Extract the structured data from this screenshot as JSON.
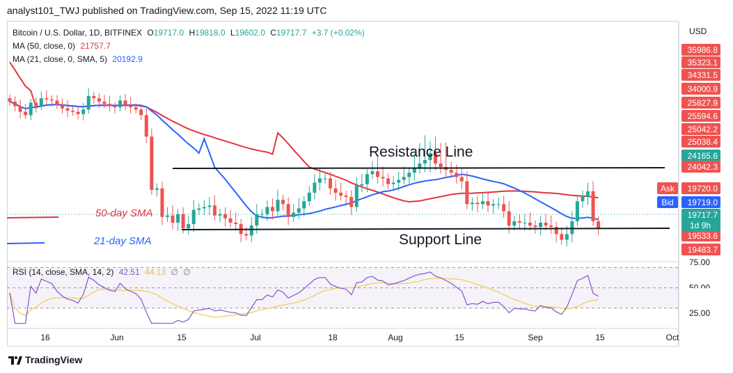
{
  "header": {
    "title": "analyst101_TWJ published on TradingView.com, Sep 15, 2022 11:19 UTC"
  },
  "legend": {
    "symbol": "Bitcoin / U.S. Dollar, 1D, BITFINEX",
    "open_label": "O",
    "open": "19717.0",
    "high_label": "H",
    "high": "19818.0",
    "low_label": "L",
    "low": "19602.0",
    "close_label": "C",
    "close": "19717.7",
    "change": "+3.7 (+0.02%)",
    "ma50_label": "MA (50, close, 0)",
    "ma50_value": "21757.7",
    "ma21_label": "MA (21, close, 0, SMA, 5)",
    "ma21_value": "20192.9",
    "rsi_label": "RSI (14, close, SMA, 14, 2)",
    "rsi_value": "42.51",
    "rsi_ma_value": "44.13",
    "rsi_extra1": "∅",
    "rsi_extra2": "∅"
  },
  "price_axis": {
    "currency": "USD",
    "labels": [
      "35986.8",
      "35323.1",
      "34331.5",
      "34000.9",
      "25827.9",
      "25594.6",
      "25042.2",
      "25038.4",
      "24165.6",
      "24042.3",
      "19533.6",
      "19483.7"
    ],
    "ask_label": "Ask",
    "ask_value": "19720.0",
    "bid_label": "Bid",
    "bid_value": "19719.0",
    "last_value": "19717.7",
    "countdown": "1d 9h"
  },
  "rsi_axis": {
    "labels": [
      "75.00",
      "50.00",
      "25.00"
    ]
  },
  "time_axis": {
    "labels": [
      "16",
      "Jun",
      "15",
      "Jul",
      "18",
      "Aug",
      "15",
      "Sep",
      "15",
      "Oct"
    ]
  },
  "annotations": {
    "resistance": "Resistance Line",
    "support": "Support Line",
    "sma50": "50-day SMA",
    "sma21": "21-day SMA"
  },
  "footer": {
    "brand": "TradingView"
  },
  "colors": {
    "up": "#26a69a",
    "down": "#ef5350",
    "ma50": "#e5333c",
    "ma21": "#2962ff",
    "rsi": "#7e57c2",
    "rsi_ma": "#f5d36a",
    "text": "#131722"
  },
  "chart_data": {
    "type": "candlestick",
    "symbol": "BTCUSD",
    "interval": "1D",
    "x_labels": [
      "16",
      "Jun",
      "15",
      "Jul",
      "18",
      "Aug",
      "15",
      "Sep",
      "15",
      "Oct"
    ],
    "ohlc_close_approx": [
      29800,
      29400,
      28900,
      28600,
      29700,
      29400,
      30100,
      30000,
      29900,
      29500,
      29200,
      29000,
      28900,
      28700,
      29100,
      30300,
      30100,
      29800,
      29600,
      29400,
      29300,
      29900,
      29500,
      29300,
      29100,
      28600,
      26700,
      22400,
      22500,
      20500,
      20600,
      20100,
      20700,
      19700,
      20000,
      21000,
      21100,
      21200,
      21300,
      20600,
      20700,
      20400,
      20100,
      20000,
      19300,
      19200,
      19900,
      20700,
      20700,
      21200,
      20900,
      21700,
      21400,
      20500,
      20800,
      21100,
      21600,
      22200,
      22900,
      23200,
      23200,
      22500,
      22200,
      22000,
      21900,
      21200,
      22700,
      22800,
      23500,
      23700,
      23300,
      23200,
      22800,
      22900,
      23100,
      23300,
      23600,
      23900,
      24100,
      24200,
      24400,
      24100,
      24000,
      23800,
      23600,
      23300,
      23000,
      21400,
      21500,
      21400,
      21600,
      21300,
      21400,
      21400,
      20900,
      19900,
      20200,
      20100,
      20100,
      19900,
      19800,
      20100,
      19900,
      19800,
      19300,
      18900,
      19300,
      20200,
      21600,
      21900,
      22300,
      20200,
      19700
    ],
    "series": [
      {
        "name": "MA (50, close, 0)",
        "last": 21757.7
      },
      {
        "name": "MA (21, close, 0, SMA, 5)",
        "last": 20192.9
      }
    ],
    "rsi": {
      "name": "RSI (14, close, SMA, 14, 2)",
      "last": 42.51,
      "ma_last": 44.13,
      "levels": [
        70,
        50,
        30
      ]
    },
    "y_axis_labels": [
      "35986.8",
      "35323.1",
      "34331.5",
      "34000.9",
      "25827.9",
      "25594.6",
      "25042.2",
      "25038.4",
      "24165.6",
      "24042.3",
      "19533.6",
      "19483.7"
    ]
  }
}
